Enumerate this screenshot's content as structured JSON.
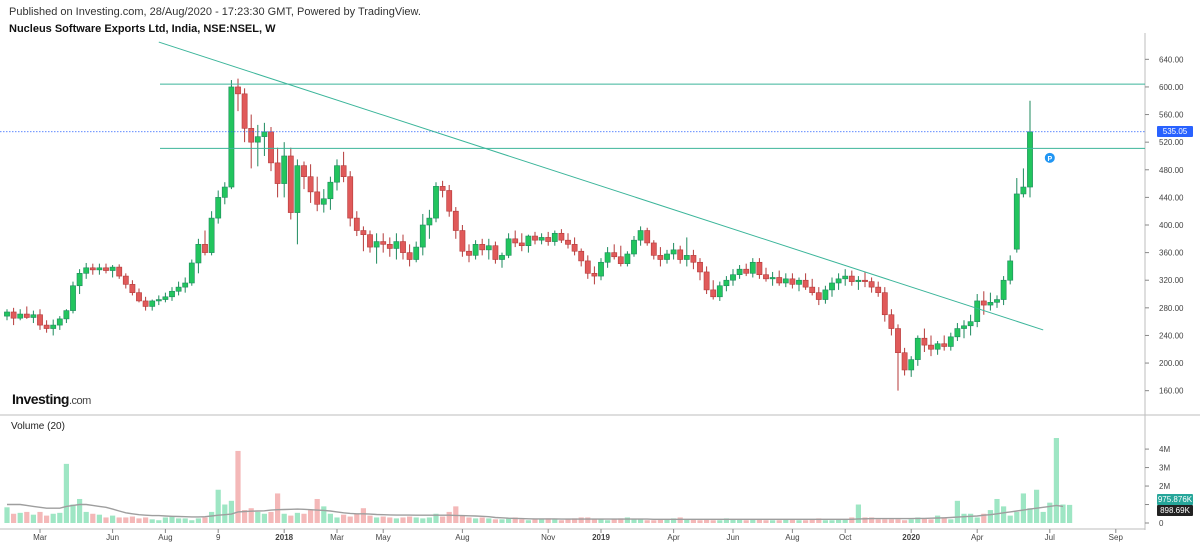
{
  "header": {
    "published": "Published on Investing.com, 28/Aug/2020 - 17:23:30 GMT, Powered by TradingView.",
    "title": "Nucleus Software Exports Ltd, India, NSE:NSEL, W"
  },
  "logo": {
    "main": "Investing",
    "suffix": ".com"
  },
  "volume_label": "Volume (20)",
  "colors": {
    "up": "#26a69a",
    "up_body": "#22c55e",
    "down": "#e05a5a",
    "vol_up": "#9ee6c4",
    "vol_down": "#f4b8b8",
    "trendline": "#3bb59a",
    "price_line": "#2962ff",
    "ma": "#9e9e9e",
    "tag_price": "#2962ff",
    "tag_vol_up": "#26a69a",
    "tag_vol_ma": "#222222"
  },
  "chart_data": {
    "type": "candlestick",
    "y_ticks": [
      "640.00",
      "600.00",
      "560.00",
      "520.00",
      "480.00",
      "440.00",
      "400.00",
      "360.00",
      "320.00",
      "280.00",
      "240.00",
      "200.00",
      "160.00"
    ],
    "y_tick_values": [
      640,
      600,
      560,
      520,
      480,
      440,
      400,
      360,
      320,
      280,
      240,
      200,
      160
    ],
    "ylim": [
      132,
      668
    ],
    "x_ticks": [
      "Mar",
      "Jun",
      "Aug",
      "9",
      "2018",
      "Mar",
      "May",
      "Aug",
      "Nov",
      "2019",
      "Apr",
      "Jun",
      "Aug",
      "Oct",
      "2020",
      "Apr",
      "Jul",
      "Sep"
    ],
    "x_bold": [
      "2018",
      "2019",
      "2020"
    ],
    "last_price_label": "535.05",
    "last_price": 535.05,
    "horizontal_lines": [
      604,
      511
    ],
    "trendline": {
      "from": {
        "week": 23,
        "price": 665
      },
      "to": {
        "week": 157,
        "price": 248
      }
    },
    "marker": {
      "label": "P",
      "week": 158,
      "price": 477
    },
    "volume_ticks": [
      "4M",
      "3M",
      "2M",
      "1M",
      "0"
    ],
    "volume_tick_values": [
      4,
      3,
      2,
      1,
      0
    ],
    "volume_tags": {
      "last": "975.876K",
      "ma": "898.69K"
    },
    "volume_values_m": [
      0.85,
      0.5,
      0.55,
      0.6,
      0.45,
      0.6,
      0.4,
      0.5,
      0.55,
      3.2,
      1.0,
      1.3,
      0.6,
      0.5,
      0.45,
      0.3,
      0.4,
      0.3,
      0.3,
      0.35,
      0.25,
      0.3,
      0.2,
      0.15,
      0.3,
      0.35,
      0.25,
      0.25,
      0.15,
      0.25,
      0.3,
      0.6,
      1.8,
      1.0,
      1.2,
      3.9,
      0.7,
      0.8,
      0.6,
      0.5,
      0.6,
      1.6,
      0.5,
      0.4,
      0.55,
      0.5,
      0.7,
      1.3,
      0.9,
      0.5,
      0.3,
      0.45,
      0.35,
      0.5,
      0.8,
      0.4,
      0.3,
      0.35,
      0.3,
      0.25,
      0.3,
      0.35,
      0.3,
      0.25,
      0.3,
      0.5,
      0.35,
      0.6,
      0.9,
      0.4,
      0.3,
      0.25,
      0.3,
      0.25,
      0.2,
      0.2,
      0.25,
      0.3,
      0.2,
      0.15,
      0.2,
      0.2,
      0.25,
      0.2,
      0.15,
      0.2,
      0.25,
      0.3,
      0.3,
      0.2,
      0.2,
      0.15,
      0.2,
      0.25,
      0.3,
      0.2,
      0.2,
      0.15,
      0.15,
      0.2,
      0.2,
      0.25,
      0.3,
      0.2,
      0.2,
      0.15,
      0.2,
      0.15,
      0.15,
      0.25,
      0.2,
      0.2,
      0.15,
      0.2,
      0.2,
      0.15,
      0.15,
      0.15,
      0.2,
      0.2,
      0.15,
      0.15,
      0.2,
      0.25,
      0.15,
      0.15,
      0.2,
      0.2,
      0.3,
      1.0,
      0.3,
      0.3,
      0.2,
      0.2,
      0.2,
      0.2,
      0.15,
      0.2,
      0.3,
      0.25,
      0.2,
      0.4,
      0.3,
      0.2,
      1.2,
      0.5,
      0.5,
      0.3,
      0.5,
      0.7,
      1.3,
      0.9,
      0.4,
      0.6,
      1.6,
      0.8,
      1.8,
      0.6,
      1.1,
      4.6,
      1.0,
      0.98
    ],
    "volume_ma_m": [
      1.0,
      1.0,
      1.0,
      0.95,
      0.9,
      0.85,
      0.8,
      0.8,
      0.8,
      0.9,
      0.95,
      1.0,
      1.0,
      0.95,
      0.9,
      0.85,
      0.75,
      0.65,
      0.55,
      0.5,
      0.45,
      0.42,
      0.4,
      0.4,
      0.38,
      0.36,
      0.35,
      0.34,
      0.33,
      0.33,
      0.34,
      0.38,
      0.42,
      0.45,
      0.48,
      0.6,
      0.62,
      0.64,
      0.65,
      0.66,
      0.7,
      0.72,
      0.73,
      0.74,
      0.75,
      0.74,
      0.72,
      0.7,
      0.68,
      0.65,
      0.6,
      0.55,
      0.52,
      0.5,
      0.5,
      0.48,
      0.46,
      0.45,
      0.44,
      0.43,
      0.43,
      0.43,
      0.42,
      0.42,
      0.42,
      0.42,
      0.42,
      0.42,
      0.41,
      0.4,
      0.39,
      0.38,
      0.36,
      0.34,
      0.3,
      0.28,
      0.26,
      0.25,
      0.24,
      0.23,
      0.22,
      0.22,
      0.22,
      0.22,
      0.21,
      0.21,
      0.21,
      0.21,
      0.21,
      0.21,
      0.21,
      0.21,
      0.21,
      0.21,
      0.21,
      0.21,
      0.21,
      0.21,
      0.2,
      0.2,
      0.2,
      0.2,
      0.2,
      0.2,
      0.2,
      0.2,
      0.2,
      0.2,
      0.2,
      0.2,
      0.2,
      0.2,
      0.2,
      0.2,
      0.2,
      0.2,
      0.2,
      0.2,
      0.2,
      0.2,
      0.2,
      0.2,
      0.2,
      0.2,
      0.2,
      0.2,
      0.2,
      0.2,
      0.2,
      0.22,
      0.23,
      0.24,
      0.24,
      0.24,
      0.24,
      0.24,
      0.24,
      0.24,
      0.25,
      0.25,
      0.26,
      0.27,
      0.28,
      0.3,
      0.32,
      0.34,
      0.36,
      0.38,
      0.42,
      0.45,
      0.5,
      0.55,
      0.6,
      0.65,
      0.7,
      0.75,
      0.8,
      0.85,
      0.9,
      0.95,
      0.9
    ],
    "ohlc": [
      [
        268,
        278,
        262,
        274
      ],
      [
        274,
        280,
        255,
        265
      ],
      [
        265,
        278,
        262,
        271
      ],
      [
        271,
        282,
        264,
        266
      ],
      [
        266,
        276,
        258,
        270
      ],
      [
        270,
        278,
        248,
        255
      ],
      [
        255,
        262,
        244,
        250
      ],
      [
        250,
        263,
        240,
        255
      ],
      [
        255,
        268,
        248,
        264
      ],
      [
        264,
        278,
        258,
        276
      ],
      [
        276,
        318,
        272,
        312
      ],
      [
        312,
        336,
        300,
        330
      ],
      [
        330,
        345,
        322,
        338
      ],
      [
        338,
        344,
        328,
        335
      ],
      [
        335,
        344,
        328,
        338
      ],
      [
        338,
        344,
        330,
        334
      ],
      [
        334,
        342,
        324,
        339
      ],
      [
        339,
        343,
        322,
        326
      ],
      [
        326,
        330,
        308,
        314
      ],
      [
        314,
        320,
        298,
        302
      ],
      [
        302,
        308,
        288,
        290
      ],
      [
        290,
        296,
        276,
        282
      ],
      [
        282,
        292,
        276,
        290
      ],
      [
        290,
        298,
        284,
        292
      ],
      [
        292,
        302,
        288,
        296
      ],
      [
        296,
        310,
        290,
        304
      ],
      [
        304,
        318,
        298,
        310
      ],
      [
        310,
        324,
        302,
        316
      ],
      [
        316,
        350,
        312,
        345
      ],
      [
        345,
        380,
        330,
        372
      ],
      [
        372,
        392,
        356,
        360
      ],
      [
        360,
        420,
        356,
        410
      ],
      [
        410,
        450,
        402,
        440
      ],
      [
        440,
        462,
        430,
        455
      ],
      [
        455,
        610,
        452,
        600
      ],
      [
        600,
        612,
        565,
        590
      ],
      [
        590,
        598,
        520,
        540
      ],
      [
        540,
        560,
        482,
        520
      ],
      [
        520,
        545,
        485,
        528
      ],
      [
        528,
        548,
        500,
        535
      ],
      [
        535,
        542,
        478,
        490
      ],
      [
        490,
        512,
        440,
        460
      ],
      [
        460,
        520,
        440,
        500
      ],
      [
        500,
        512,
        408,
        418
      ],
      [
        418,
        495,
        372,
        486
      ],
      [
        486,
        492,
        452,
        470
      ],
      [
        470,
        488,
        432,
        448
      ],
      [
        448,
        470,
        420,
        430
      ],
      [
        430,
        452,
        418,
        438
      ],
      [
        438,
        470,
        422,
        462
      ],
      [
        462,
        495,
        450,
        486
      ],
      [
        486,
        506,
        462,
        470
      ],
      [
        470,
        478,
        398,
        410
      ],
      [
        410,
        420,
        384,
        392
      ],
      [
        392,
        398,
        362,
        386
      ],
      [
        386,
        392,
        360,
        368
      ],
      [
        368,
        388,
        344,
        376
      ],
      [
        376,
        388,
        360,
        372
      ],
      [
        372,
        382,
        354,
        366
      ],
      [
        366,
        388,
        350,
        376
      ],
      [
        376,
        386,
        350,
        360
      ],
      [
        360,
        372,
        340,
        350
      ],
      [
        350,
        376,
        346,
        368
      ],
      [
        368,
        416,
        356,
        400
      ],
      [
        400,
        422,
        380,
        410
      ],
      [
        410,
        462,
        404,
        456
      ],
      [
        456,
        464,
        440,
        450
      ],
      [
        450,
        458,
        412,
        420
      ],
      [
        420,
        426,
        380,
        392
      ],
      [
        392,
        400,
        354,
        362
      ],
      [
        362,
        372,
        346,
        356
      ],
      [
        356,
        378,
        350,
        372
      ],
      [
        372,
        380,
        356,
        364
      ],
      [
        364,
        380,
        350,
        370
      ],
      [
        370,
        376,
        344,
        350
      ],
      [
        350,
        360,
        338,
        356
      ],
      [
        356,
        388,
        352,
        380
      ],
      [
        380,
        392,
        368,
        374
      ],
      [
        374,
        388,
        362,
        370
      ],
      [
        370,
        386,
        360,
        384
      ],
      [
        384,
        390,
        372,
        378
      ],
      [
        378,
        388,
        372,
        382
      ],
      [
        382,
        390,
        370,
        376
      ],
      [
        376,
        392,
        370,
        388
      ],
      [
        388,
        394,
        374,
        378
      ],
      [
        378,
        388,
        366,
        372
      ],
      [
        372,
        382,
        356,
        362
      ],
      [
        362,
        366,
        340,
        348
      ],
      [
        348,
        356,
        322,
        330
      ],
      [
        330,
        340,
        314,
        326
      ],
      [
        326,
        352,
        320,
        346
      ],
      [
        346,
        368,
        338,
        360
      ],
      [
        360,
        372,
        350,
        354
      ],
      [
        354,
        370,
        340,
        344
      ],
      [
        344,
        362,
        340,
        358
      ],
      [
        358,
        384,
        354,
        378
      ],
      [
        378,
        398,
        370,
        392
      ],
      [
        392,
        396,
        370,
        374
      ],
      [
        374,
        378,
        350,
        356
      ],
      [
        356,
        368,
        340,
        350
      ],
      [
        350,
        364,
        344,
        358
      ],
      [
        358,
        374,
        350,
        364
      ],
      [
        364,
        370,
        344,
        350
      ],
      [
        350,
        382,
        340,
        356
      ],
      [
        356,
        364,
        336,
        346
      ],
      [
        346,
        352,
        320,
        332
      ],
      [
        332,
        340,
        300,
        306
      ],
      [
        306,
        320,
        292,
        296
      ],
      [
        296,
        318,
        290,
        312
      ],
      [
        312,
        326,
        304,
        320
      ],
      [
        320,
        336,
        312,
        328
      ],
      [
        328,
        342,
        322,
        336
      ],
      [
        336,
        344,
        326,
        330
      ],
      [
        330,
        352,
        324,
        346
      ],
      [
        346,
        352,
        322,
        328
      ],
      [
        328,
        338,
        318,
        322
      ],
      [
        322,
        332,
        312,
        324
      ],
      [
        324,
        334,
        312,
        316
      ],
      [
        316,
        330,
        310,
        322
      ],
      [
        322,
        330,
        308,
        314
      ],
      [
        314,
        324,
        304,
        320
      ],
      [
        320,
        330,
        306,
        310
      ],
      [
        310,
        322,
        298,
        302
      ],
      [
        302,
        310,
        284,
        292
      ],
      [
        292,
        312,
        286,
        306
      ],
      [
        306,
        324,
        296,
        316
      ],
      [
        316,
        330,
        306,
        322
      ],
      [
        322,
        336,
        312,
        326
      ],
      [
        326,
        334,
        312,
        318
      ],
      [
        318,
        326,
        306,
        320
      ],
      [
        320,
        332,
        310,
        318
      ],
      [
        318,
        324,
        302,
        310
      ],
      [
        310,
        318,
        296,
        302
      ],
      [
        302,
        310,
        260,
        270
      ],
      [
        270,
        278,
        240,
        250
      ],
      [
        250,
        256,
        160,
        215
      ],
      [
        215,
        222,
        182,
        190
      ],
      [
        190,
        210,
        180,
        205
      ],
      [
        205,
        240,
        196,
        236
      ],
      [
        236,
        250,
        216,
        226
      ],
      [
        226,
        240,
        210,
        220
      ],
      [
        220,
        232,
        212,
        228
      ],
      [
        228,
        240,
        218,
        224
      ],
      [
        224,
        244,
        218,
        238
      ],
      [
        238,
        258,
        232,
        250
      ],
      [
        250,
        262,
        236,
        254
      ],
      [
        254,
        270,
        240,
        260
      ],
      [
        260,
        300,
        252,
        290
      ],
      [
        290,
        304,
        270,
        284
      ],
      [
        284,
        302,
        276,
        288
      ],
      [
        288,
        298,
        280,
        292
      ],
      [
        292,
        326,
        284,
        320
      ],
      [
        320,
        356,
        314,
        348
      ],
      [
        365,
        468,
        360,
        445
      ],
      [
        445,
        482,
        440,
        455
      ],
      [
        455,
        580,
        440,
        535.05
      ]
    ]
  }
}
